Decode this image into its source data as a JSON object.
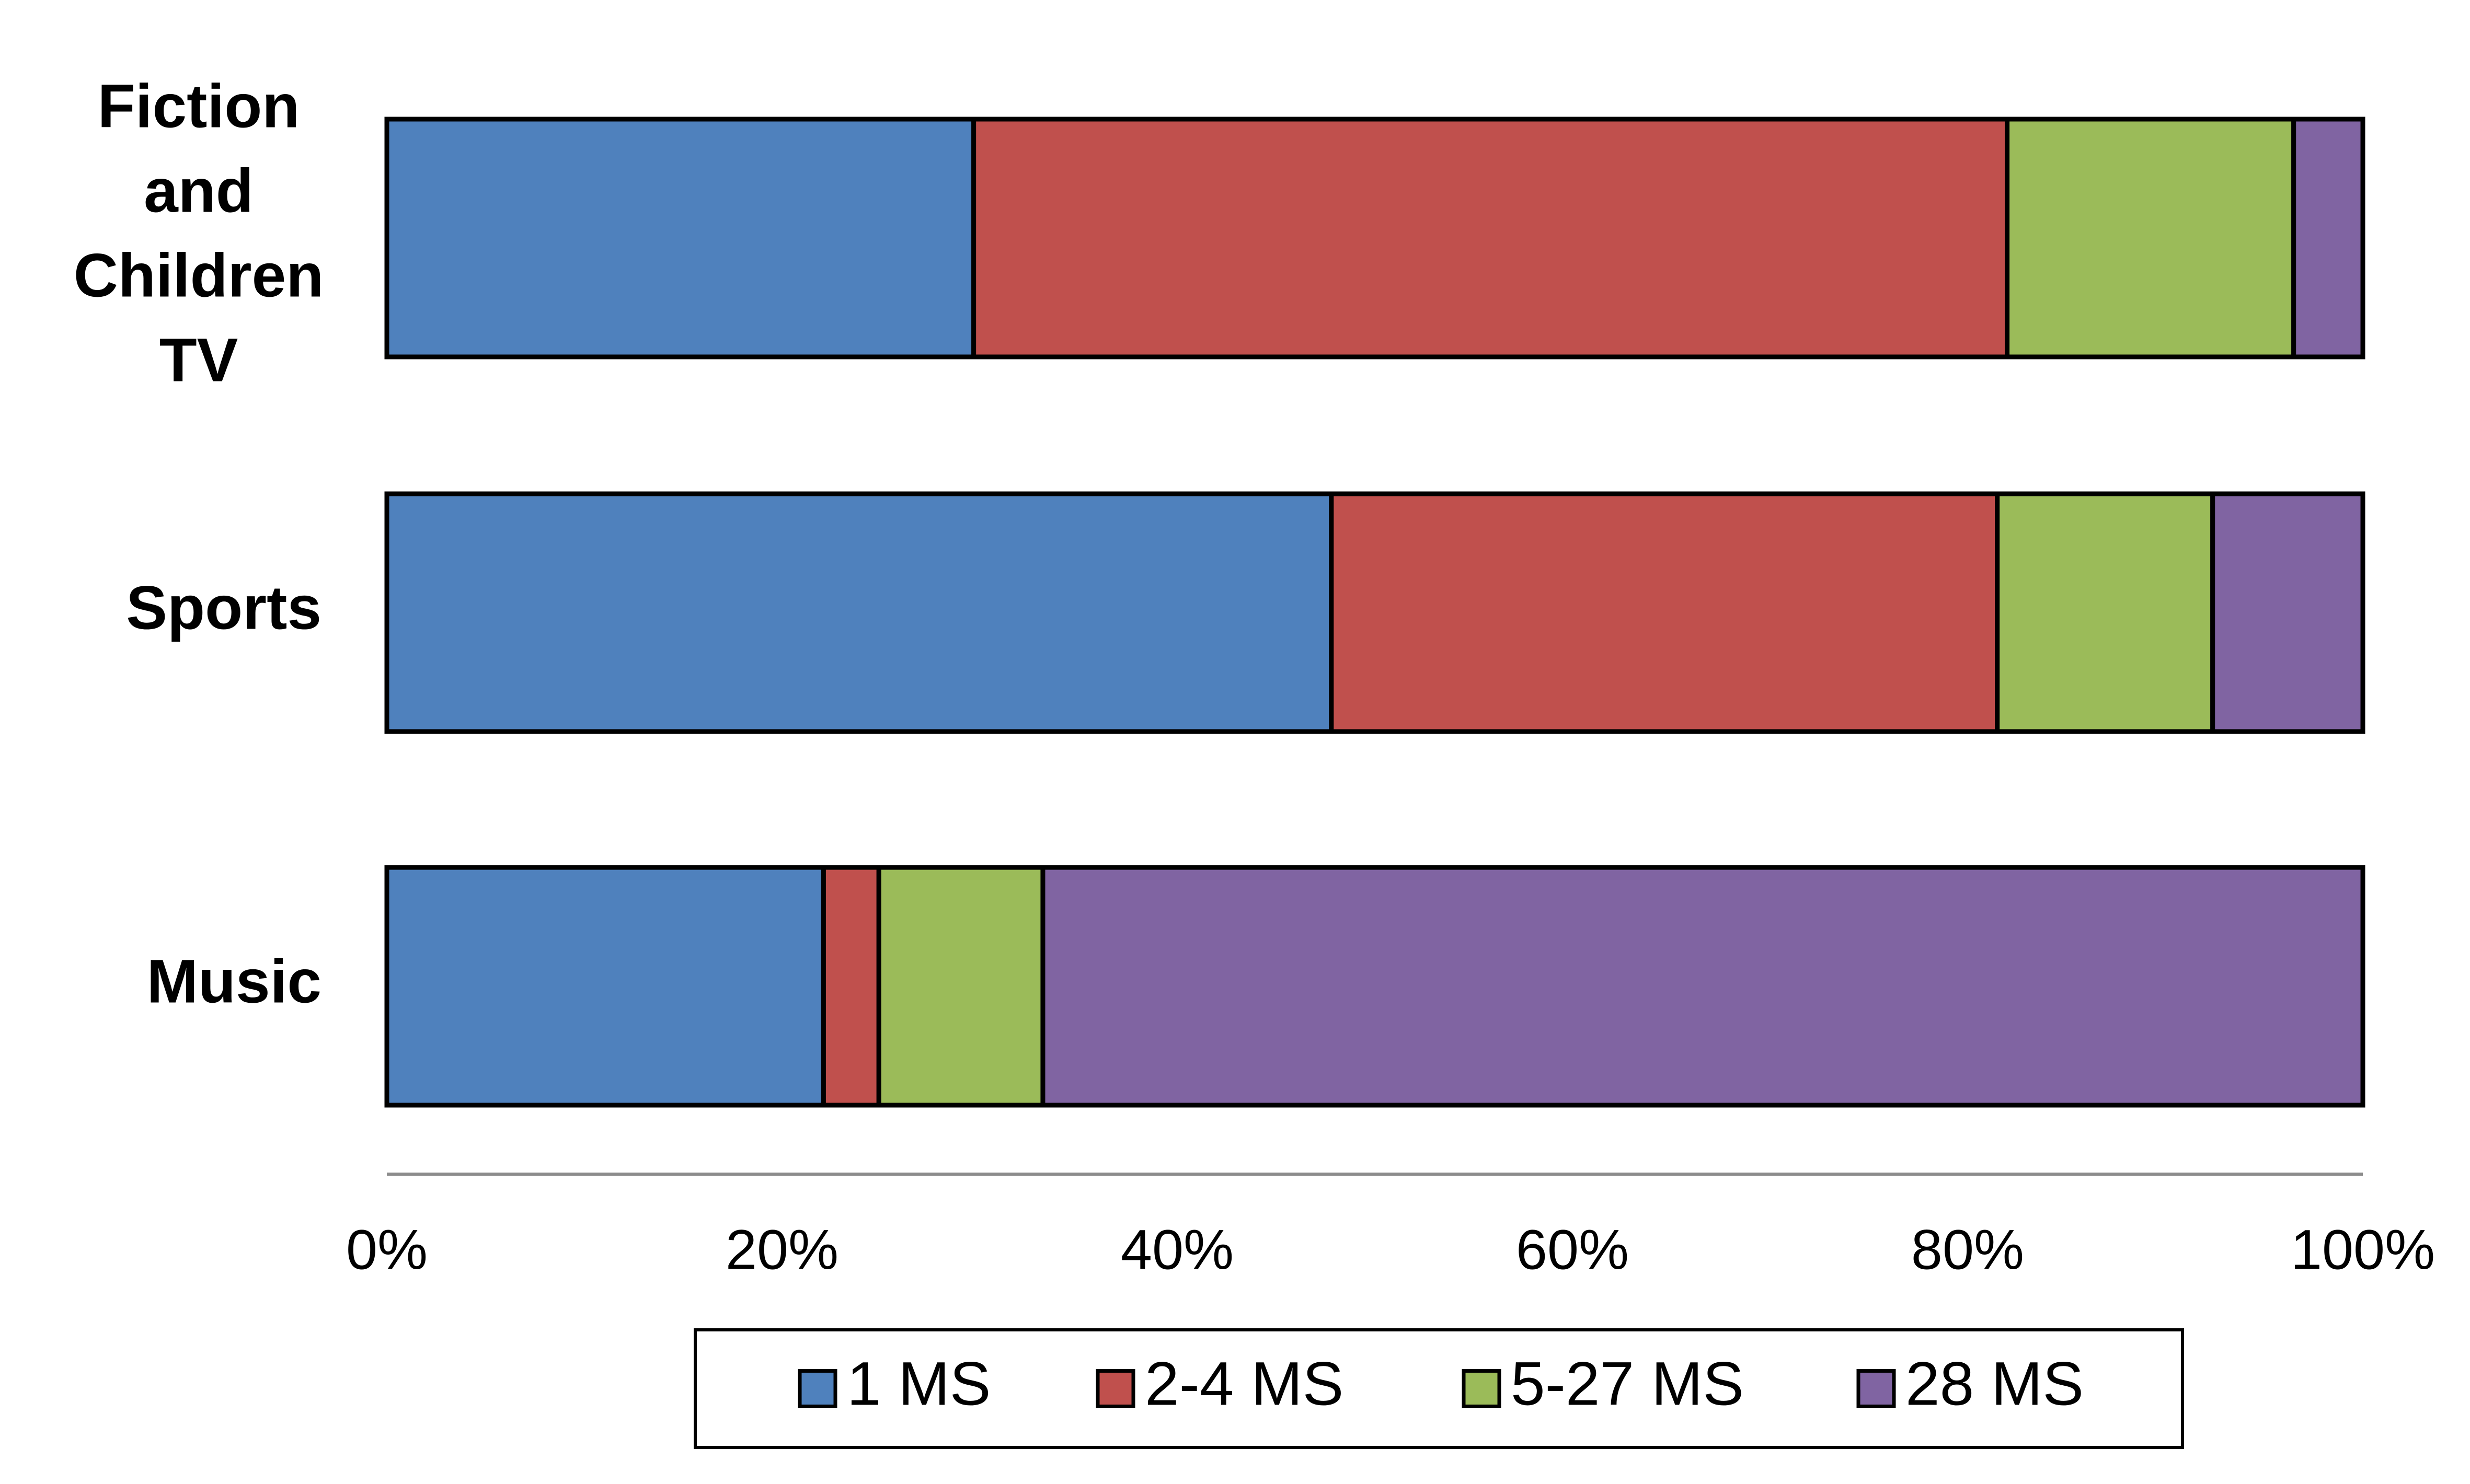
{
  "chart_data": {
    "type": "bar",
    "orientation": "horizontal",
    "stacked": "percent",
    "categories": [
      "Fiction and Children TV",
      "Sports",
      "Music"
    ],
    "series": [
      {
        "name": "1 MS",
        "values": [
          29.7,
          47.8,
          22.1
        ],
        "color": "#4F81BD"
      },
      {
        "name": "2-4 MS",
        "values": [
          52.3,
          33.7,
          2.8
        ],
        "color": "#C0504D"
      },
      {
        "name": "5-27 MS",
        "values": [
          14.5,
          10.9,
          8.3
        ],
        "color": "#9BBB59"
      },
      {
        "name": "28 MS",
        "values": [
          3.5,
          7.6,
          66.8
        ],
        "color": "#8064A2"
      }
    ],
    "xlim": [
      0,
      100
    ],
    "x_ticks": [
      "0%",
      "20%",
      "40%",
      "60%",
      "80%",
      "100%"
    ],
    "grid": false,
    "legend_position": "bottom",
    "title": "",
    "xlabel": "",
    "ylabel": ""
  }
}
